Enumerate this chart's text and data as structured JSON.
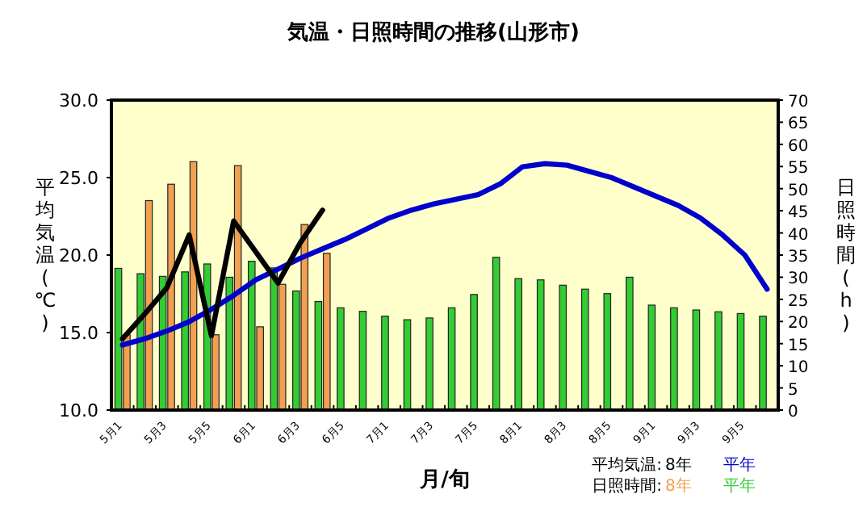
{
  "chart_data": {
    "type": "bar",
    "title": "気温・日照時間の推移(山形市)",
    "xlabel": "月/旬",
    "ylabel": "平均気温(℃)",
    "y2label": "日照時間(h)",
    "categories": [
      "5月1",
      null,
      "5月3",
      null,
      "5月5",
      null,
      "6月1",
      null,
      "6月3",
      null,
      "6月5",
      null,
      "7月1",
      null,
      "7月3",
      null,
      "7月5",
      null,
      "8月1",
      null,
      "8月3",
      null,
      "8月5",
      null,
      "9月1",
      null,
      "9月3",
      null,
      "9月5",
      null
    ],
    "series": [
      {
        "name": "平年",
        "axis": "y2",
        "color": "#33cc33",
        "values": [
          32.0,
          30.8,
          30.2,
          31.2,
          33.0,
          30.0,
          33.6,
          32.1,
          26.9,
          24.5,
          23.1,
          22.3,
          21.2,
          20.4,
          20.8,
          23.1,
          26.1,
          34.5,
          29.7,
          29.4,
          28.2,
          27.3,
          26.3,
          30.0,
          23.7,
          23.1,
          22.6,
          22.2,
          21.8,
          21.2
        ]
      },
      {
        "name": "8年",
        "axis": "y2",
        "color": "#f0a050",
        "values": [
          17.0,
          47.3,
          51.0,
          56.1,
          17.0,
          55.2,
          18.8,
          28.4,
          41.9,
          35.4,
          null,
          null,
          null,
          null,
          null,
          null,
          null,
          null,
          null,
          null,
          null,
          null,
          null,
          null,
          null,
          null,
          null,
          null,
          null,
          null
        ]
      },
      {
        "name": "平年",
        "type": "line",
        "color": "#0000cc",
        "values": [
          14.2,
          14.6,
          15.1,
          15.7,
          16.5,
          17.4,
          18.4,
          19.1,
          19.8,
          20.4,
          21.0,
          21.7,
          22.4,
          22.9,
          23.3,
          23.6,
          23.9,
          24.6,
          25.7,
          25.9,
          25.8,
          25.4,
          25.0,
          24.4,
          23.8,
          23.2,
          22.4,
          21.3,
          20.0,
          17.8
        ]
      },
      {
        "name": "8年",
        "type": "line",
        "color": "#000000",
        "values": [
          14.6,
          16.2,
          17.9,
          21.3,
          14.8,
          22.2,
          20.2,
          18.2,
          20.8,
          22.9,
          null,
          null,
          null,
          null,
          null,
          null,
          null,
          null,
          null,
          null,
          null,
          null,
          null,
          null,
          null,
          null,
          null,
          null,
          null,
          null
        ]
      }
    ],
    "ylim": [
      10,
      30
    ],
    "yticks": [
      {
        "value": 10,
        "label": "10.0"
      },
      {
        "value": 15,
        "label": "15.0"
      },
      {
        "value": 20,
        "label": "20.0"
      },
      {
        "value": 25,
        "label": "25.0"
      },
      {
        "value": 30,
        "label": "30.0"
      }
    ],
    "y2lim": [
      0,
      70
    ],
    "y2ticks": [
      0,
      5,
      10,
      15,
      20,
      25,
      30,
      35,
      40,
      45,
      50,
      55,
      60,
      65,
      70
    ],
    "annotations": [
      "平均気温:",
      "日照時間:"
    ],
    "legend": "bottom right"
  }
}
